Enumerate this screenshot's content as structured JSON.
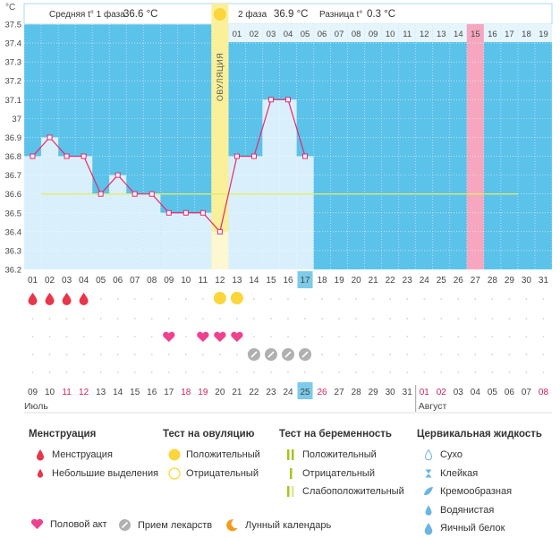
{
  "header": {
    "unit": "°C",
    "phase1_label": "Средняя t° 1 фаза",
    "phase1_value": "36.6 °C",
    "phase2_label": "2 фаза",
    "phase2_value": "36.9 °C",
    "diff_label": "Разница t°",
    "diff_value": "0.3 °C",
    "ovulation_label": "ОВУЛЯЦИЯ"
  },
  "chart_data": {
    "type": "line",
    "y_ticks": [
      "37.5",
      "37.4",
      "37.3",
      "37.2",
      "37.1",
      "37",
      "36.9",
      "36.8",
      "36.7",
      "36.6",
      "36.5",
      "36.4",
      "36.3",
      "36.2"
    ],
    "ylim": [
      36.2,
      37.5
    ],
    "cycle_days": [
      "01",
      "02",
      "03",
      "04",
      "05",
      "06",
      "07",
      "08",
      "09",
      "10",
      "11",
      "12",
      "13",
      "14",
      "15",
      "16",
      "17",
      "18",
      "19",
      "20",
      "21",
      "22",
      "23",
      "24",
      "25",
      "26",
      "27",
      "28",
      "29",
      "30",
      "31"
    ],
    "temperatures": [
      36.8,
      36.9,
      36.8,
      36.8,
      36.6,
      36.7,
      36.6,
      36.6,
      36.5,
      36.5,
      36.5,
      36.4,
      36.8,
      36.8,
      37.1,
      37.1,
      36.8
    ],
    "current_day": "17",
    "ovulation_day": "12",
    "coverline": 36.6,
    "phase2_top_days": [
      "01",
      "02",
      "03",
      "04",
      "05",
      "06",
      "07",
      "08",
      "09",
      "10",
      "11",
      "12",
      "13",
      "14",
      "15",
      "16",
      "17",
      "18",
      "19"
    ],
    "phase2_top_highlight": "15",
    "highlight_day": "27",
    "dates": [
      "09",
      "10",
      "11",
      "12",
      "13",
      "14",
      "15",
      "16",
      "17",
      "18",
      "19",
      "20",
      "21",
      "22",
      "23",
      "24",
      "25",
      "26",
      "27",
      "28",
      "29",
      "30",
      "31",
      "01",
      "02",
      "03",
      "04",
      "05",
      "06",
      "07",
      "08"
    ],
    "date_red": [
      "11",
      "12",
      "18",
      "19",
      "26",
      "01",
      "02",
      "08"
    ],
    "today_date": "25",
    "month1": "Июль",
    "month2": "Август",
    "menstruation_days": [
      "01",
      "02",
      "03",
      "04"
    ],
    "ovulation_test_days": [
      "12",
      "13"
    ],
    "sex_days": [
      "09",
      "11",
      "12",
      "13"
    ],
    "medication_days": [
      "14",
      "15",
      "16",
      "17"
    ]
  },
  "legend": {
    "menstruation_title": "Менструация",
    "menstruation": "Менструация",
    "light_bleeding": "Небольшие выделения",
    "ovulation_test_title": "Тест на овуляцию",
    "positive": "Положительный",
    "negative": "Отрицательный",
    "pregnancy_test_title": "Тест на беременность",
    "preg_positive": "Положительный",
    "preg_negative": "Отрицательный",
    "preg_weak": "Слабоположительный",
    "cervical_title": "Цервикальная жидкость",
    "dry": "Сухо",
    "sticky": "Клейкая",
    "creamy": "Кремообразная",
    "watery": "Водянистая",
    "egg_white": "Яичный белок",
    "intercourse": "Половой акт",
    "medication": "Прием лекарств",
    "lunar": "Лунный календарь"
  },
  "colors": {
    "plot_bg": "#5bc2ea",
    "bar_fill": "#d9f0fc",
    "line": "#e8266b",
    "ovulation_band": "#fbf09a",
    "coverline": "#e3ec6a",
    "highlight": "#f6a6bf",
    "current": "#7ccbe9",
    "heart": "#f0418e",
    "drop": "#e8364a",
    "sun": "#fad63b"
  }
}
